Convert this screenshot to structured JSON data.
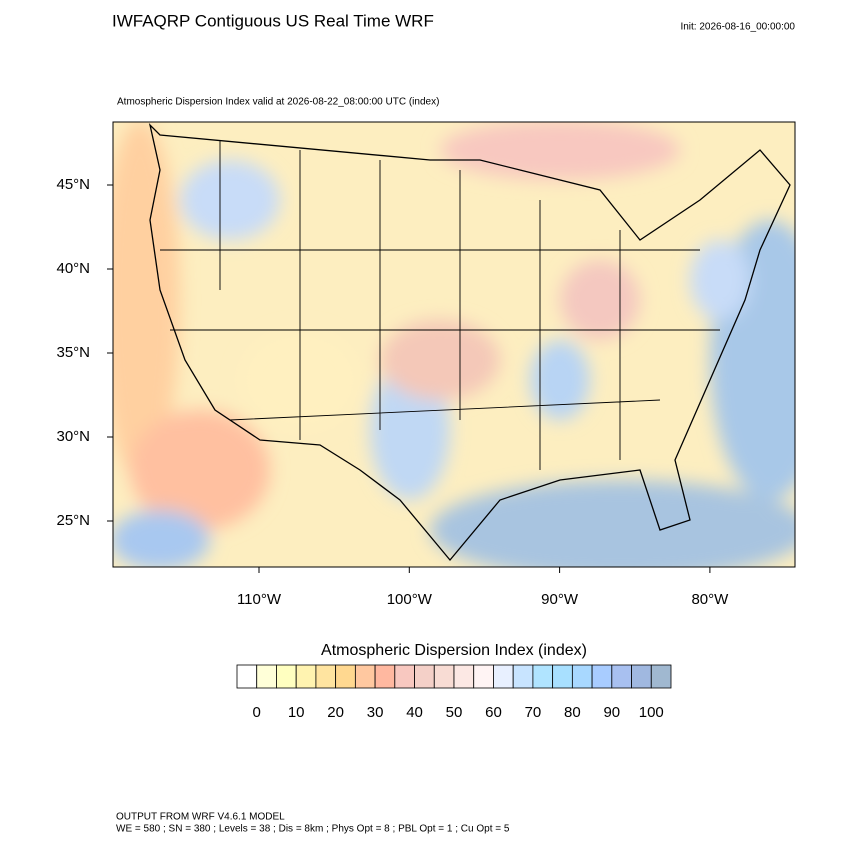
{
  "header": {
    "title": "IWFAQRP Contiguous US Real Time WRF",
    "init": "Init: 2026-08-16_00:00:00"
  },
  "map": {
    "subtitle": "Atmospheric Dispersion Index valid at 2026-08-22_08:00:00 UTC   (index)",
    "lat_labels": [
      {
        "value": 45,
        "label": "45°N"
      },
      {
        "value": 40,
        "label": "40°N"
      },
      {
        "value": 35,
        "label": "35°N"
      },
      {
        "value": 30,
        "label": "30°N"
      },
      {
        "value": 25,
        "label": "25°N"
      }
    ],
    "lon_labels": [
      {
        "value": 110,
        "label": "110°W"
      },
      {
        "value": 100,
        "label": "100°W"
      },
      {
        "value": 90,
        "label": "90°W"
      },
      {
        "value": 80,
        "label": "80°W"
      }
    ]
  },
  "colorbar": {
    "title": "Atmospheric Dispersion Index  (index)",
    "colors": [
      "#ffffff",
      "#ffffd8",
      "#ffffc0",
      "#fff3b0",
      "#ffe4a0",
      "#ffd890",
      "#ffc8a0",
      "#ffb8a0",
      "#f8c8c0",
      "#f4d0c8",
      "#f8dcd4",
      "#fce8e4",
      "#fff4f4",
      "#e8f0ff",
      "#c8e4ff",
      "#b0e4ff",
      "#a8e0ff",
      "#a8d8ff",
      "#a8ccff",
      "#a8c0f0",
      "#a0b8e0",
      "#a0b8d0"
    ],
    "ticks": [
      0,
      10,
      20,
      30,
      40,
      50,
      60,
      70,
      80,
      90,
      100
    ]
  },
  "footer": {
    "line1": "OUTPUT FROM WRF V4.6.1 MODEL",
    "line2": "WE = 580 ; SN = 380 ; Levels = 38 ; Dis = 8km ; Phys Opt = 8 ; PBL Opt = 1 ; Cu Opt = 5"
  }
}
